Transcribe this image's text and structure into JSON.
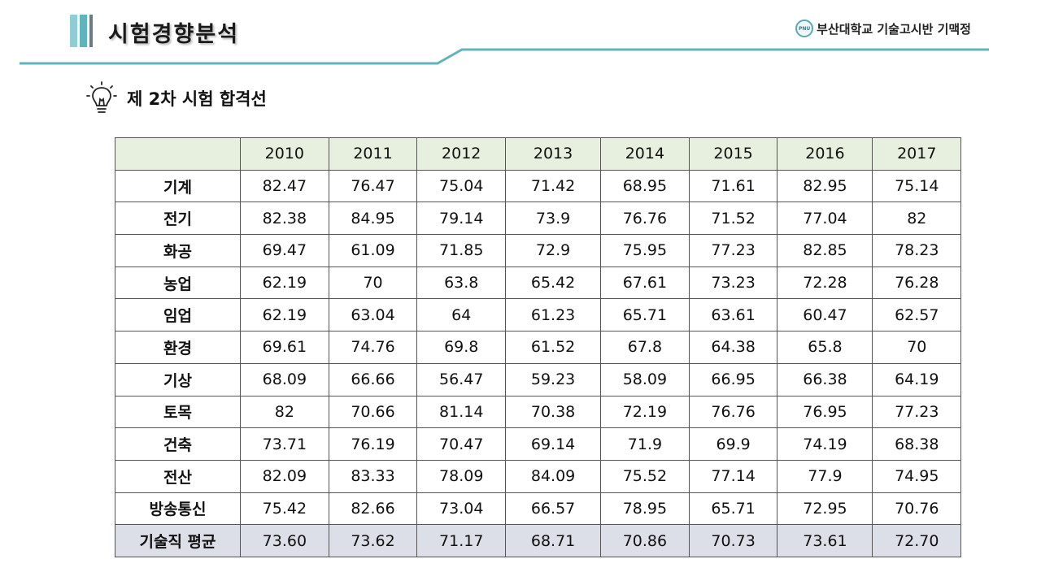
{
  "header": {
    "title": "시험경향분석",
    "org": "부산대학교 기술고시반 기맥정",
    "logo_text": "PNU"
  },
  "section": {
    "icon": "lightbulb-icon",
    "title": "제 2차 시험 합격선"
  },
  "colors": {
    "accent_teal": "#5fb4bd",
    "header_row": "#e7f0df",
    "average_row": "#dcdfe7"
  },
  "table": {
    "years": [
      "2010",
      "2011",
      "2012",
      "2013",
      "2014",
      "2015",
      "2016",
      "2017"
    ],
    "rows": [
      {
        "label": "기계",
        "values": [
          "82.47",
          "76.47",
          "75.04",
          "71.42",
          "68.95",
          "71.61",
          "82.95",
          "75.14"
        ]
      },
      {
        "label": "전기",
        "values": [
          "82.38",
          "84.95",
          "79.14",
          "73.9",
          "76.76",
          "71.52",
          "77.04",
          "82"
        ]
      },
      {
        "label": "화공",
        "values": [
          "69.47",
          "61.09",
          "71.85",
          "72.9",
          "75.95",
          "77.23",
          "82.85",
          "78.23"
        ]
      },
      {
        "label": "농업",
        "values": [
          "62.19",
          "70",
          "63.8",
          "65.42",
          "67.61",
          "73.23",
          "72.28",
          "76.28"
        ]
      },
      {
        "label": "임업",
        "values": [
          "62.19",
          "63.04",
          "64",
          "61.23",
          "65.71",
          "63.61",
          "60.47",
          "62.57"
        ]
      },
      {
        "label": "환경",
        "values": [
          "69.61",
          "74.76",
          "69.8",
          "61.52",
          "67.8",
          "64.38",
          "65.8",
          "70"
        ]
      },
      {
        "label": "기상",
        "values": [
          "68.09",
          "66.66",
          "56.47",
          "59.23",
          "58.09",
          "66.95",
          "66.38",
          "64.19"
        ]
      },
      {
        "label": "토목",
        "values": [
          "82",
          "70.66",
          "81.14",
          "70.38",
          "72.19",
          "76.76",
          "76.95",
          "77.23"
        ]
      },
      {
        "label": "건축",
        "values": [
          "73.71",
          "76.19",
          "70.47",
          "69.14",
          "71.9",
          "69.9",
          "74.19",
          "68.38"
        ]
      },
      {
        "label": "전산",
        "values": [
          "82.09",
          "83.33",
          "78.09",
          "84.09",
          "75.52",
          "77.14",
          "77.9",
          "74.95"
        ]
      },
      {
        "label": "방송통신",
        "values": [
          "75.42",
          "82.66",
          "73.04",
          "66.57",
          "78.95",
          "65.71",
          "72.95",
          "70.76"
        ]
      }
    ],
    "average": {
      "label": "기술직 평균",
      "values": [
        "73.60",
        "73.62",
        "71.17",
        "68.71",
        "70.86",
        "70.73",
        "73.61",
        "72.70"
      ]
    }
  }
}
